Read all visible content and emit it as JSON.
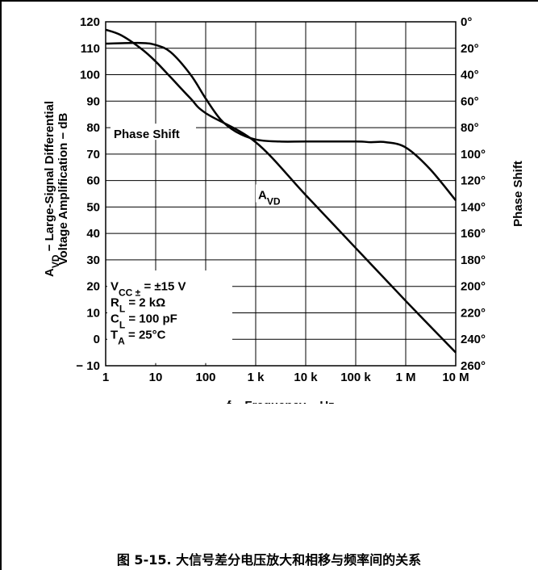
{
  "chart_data": {
    "type": "line",
    "x_scale": "log",
    "xlim": [
      1,
      10000000
    ],
    "ylim": [
      -10,
      120
    ],
    "y2lim": [
      0,
      260
    ],
    "y2_reversed": true,
    "grid": true,
    "x_tick_values": [
      1,
      10,
      100,
      1000,
      10000,
      100000,
      1000000,
      10000000
    ],
    "x_tick_labels": [
      "1",
      "10",
      "100",
      "1 k",
      "10 k",
      "100 k",
      "1 M",
      "10 M"
    ],
    "y_tick_values": [
      120,
      110,
      100,
      90,
      80,
      70,
      60,
      50,
      40,
      30,
      20,
      10,
      0,
      -10
    ],
    "y_tick_labels": [
      "120",
      "110",
      "100",
      "90",
      "80",
      "70",
      "60",
      "50",
      "40",
      "30",
      "20",
      "10",
      "0",
      "− 10"
    ],
    "y2_tick_values": [
      0,
      20,
      40,
      60,
      80,
      100,
      120,
      140,
      160,
      180,
      200,
      220,
      240,
      260
    ],
    "y2_tick_labels": [
      "0°",
      "20°",
      "40°",
      "60°",
      "80°",
      "100°",
      "120°",
      "140°",
      "160°",
      "180°",
      "200°",
      "220°",
      "240°",
      "260°"
    ],
    "xlabel": "f − Frequency − Hz",
    "ylabel": {
      "line1_pre": "A",
      "line1_sub": "VD",
      "line1_post": " − Large-Signal Differential",
      "line2": "Voltage Amplification − dB"
    },
    "y2label": "Phase Shift",
    "series": [
      {
        "name": "A_VD",
        "label_main": "A",
        "label_sub": "VD",
        "axis": "left",
        "x": [
          1,
          2,
          5,
          10,
          20,
          50,
          100,
          1000,
          10000,
          100000,
          1000000,
          10000000
        ],
        "y": [
          117,
          115,
          110,
          105,
          99,
          91,
          85.5,
          74.5,
          54.5,
          34.5,
          14.5,
          -5
        ]
      },
      {
        "name": "Phase Shift",
        "label": "Phase Shift",
        "axis": "right",
        "x": [
          1,
          5,
          10,
          20,
          50,
          100,
          200,
          400,
          1000,
          3000,
          10000,
          100000,
          200000,
          400000,
          1000000,
          3000000,
          10000000
        ],
        "y": [
          16.5,
          16,
          17.5,
          23,
          40,
          58,
          74,
          83,
          89,
          90.5,
          90.5,
          90.5,
          91,
          91,
          95,
          111,
          135
        ]
      }
    ],
    "annotations": [
      {
        "line": 1,
        "pre": "V",
        "sub": "CC ±",
        "post": " = ±15 V"
      },
      {
        "line": 2,
        "pre": "R",
        "sub": "L",
        "post": " = 2 kΩ"
      },
      {
        "line": 3,
        "pre": "C",
        "sub": "L",
        "post": " = 100 pF"
      },
      {
        "line": 4,
        "pre": "T",
        "sub": "A",
        "post": " = 25°C"
      }
    ]
  },
  "caption": "图 5-15. 大信号差分电压放大和相移与频率间的关系"
}
